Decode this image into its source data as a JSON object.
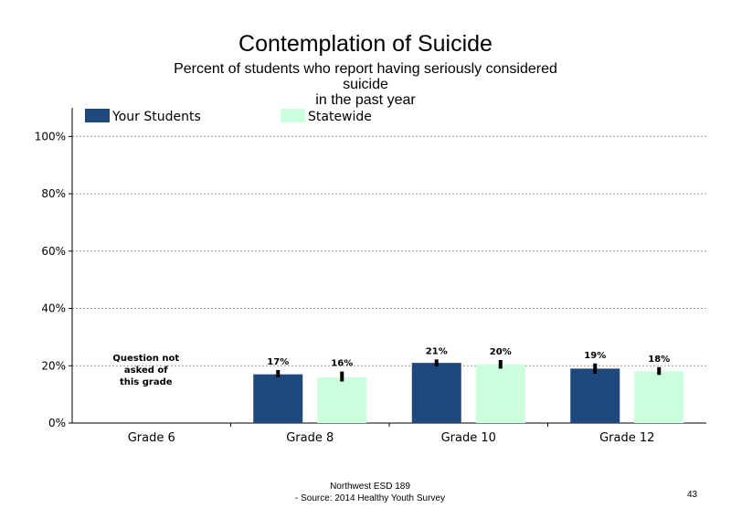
{
  "page": {
    "footer_line1": "Northwest ESD  189",
    "footer_line2": "- Source: 2014 Healthy  Youth Survey",
    "page_number": "43"
  },
  "chart_data": {
    "type": "bar",
    "title": "Contemplation of Suicide",
    "subtitle_lines": [
      "Percent of students  who report having seriously considered",
      "suicide",
      "in the past year"
    ],
    "categories": [
      "Grade 6",
      "Grade 8",
      "Grade 10",
      "Grade 12"
    ],
    "series": [
      {
        "name": "Your Students",
        "color": "#1f497d",
        "values": [
          null,
          17,
          21,
          19
        ],
        "labels": [
          "",
          "17%",
          "21%",
          "19%"
        ],
        "error": [
          null,
          [
            16,
            18.5
          ],
          [
            19.8,
            22.2
          ],
          [
            17.2,
            20.8
          ]
        ]
      },
      {
        "name": "Statewide",
        "color": "#ccffdd",
        "values": [
          null,
          16,
          20.5,
          18
        ],
        "labels": [
          "",
          "16%",
          "20%",
          "18%"
        ],
        "error": [
          null,
          [
            14.5,
            18
          ],
          [
            19,
            22
          ],
          [
            16.8,
            19.5
          ]
        ]
      }
    ],
    "ylim": [
      0,
      110
    ],
    "yticks": [
      0,
      20,
      40,
      60,
      80,
      100
    ],
    "ytick_labels": [
      "0%",
      "20%",
      "40%",
      "60%",
      "80%",
      "100%"
    ],
    "gridlines": "dotted",
    "legend_position": "top",
    "not_asked_note": [
      "Question not",
      "asked of",
      "this grade"
    ]
  }
}
